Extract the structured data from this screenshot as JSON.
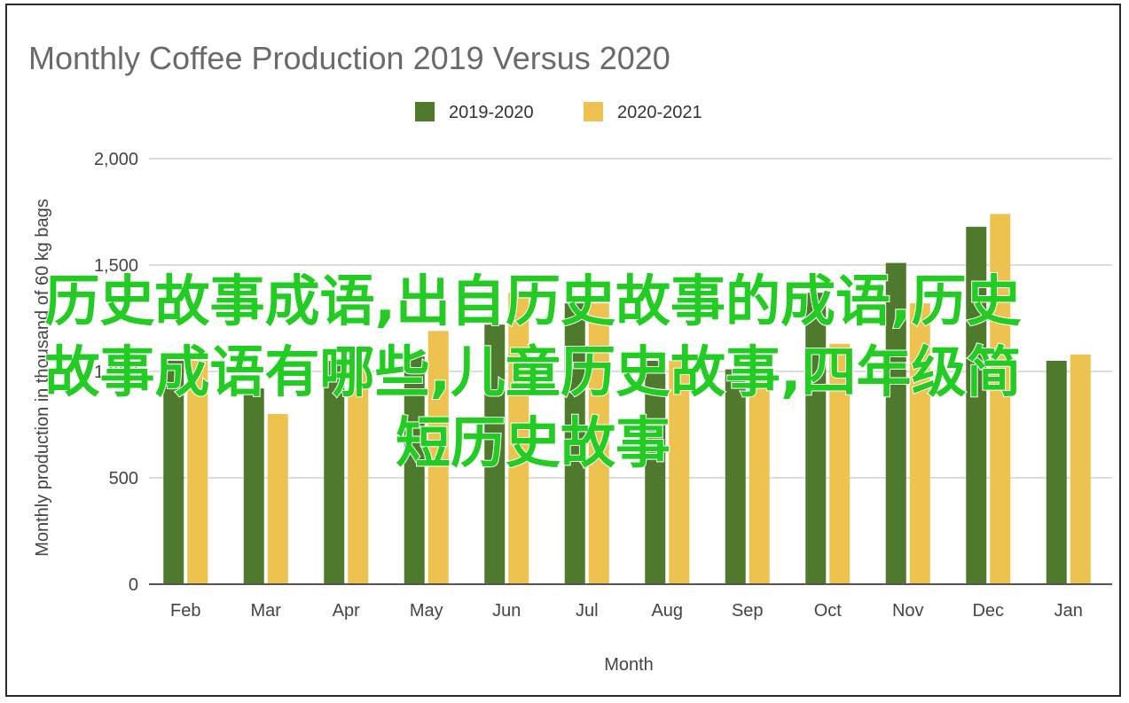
{
  "overlay_text": "历史故事成语,出自历史故事的成语,历史故事成语有哪些,儿童历史故事,四年级简短历史故事",
  "chart_data": {
    "type": "bar",
    "title": "Monthly Coffee Production 2019 Versus 2020",
    "xlabel": "Month",
    "ylabel": "Monthly production in thousand of 60 kg bags",
    "ylim": [
      0,
      2000
    ],
    "yticks": [
      0,
      500,
      1000,
      1500,
      2000
    ],
    "ytick_labels": [
      "0",
      "500",
      "1,000",
      "1,500",
      "2,000"
    ],
    "grid": true,
    "legend_position": "top-center",
    "categories": [
      "Feb",
      "Mar",
      "Apr",
      "May",
      "Jun",
      "Jul",
      "Aug",
      "Sep",
      "Oct",
      "Nov",
      "Dec",
      "Jan"
    ],
    "series": [
      {
        "name": "2019-2020",
        "color": "#4f7a2e",
        "values": [
          1050,
          920,
          1050,
          1070,
          1220,
          1320,
          1050,
          1010,
          1370,
          1510,
          1680,
          1050
        ]
      },
      {
        "name": "2020-2021",
        "color": "#eec24f",
        "values": [
          1050,
          800,
          1050,
          1190,
          1370,
          1320,
          1050,
          1000,
          1130,
          1320,
          1740,
          1080
        ]
      }
    ]
  }
}
